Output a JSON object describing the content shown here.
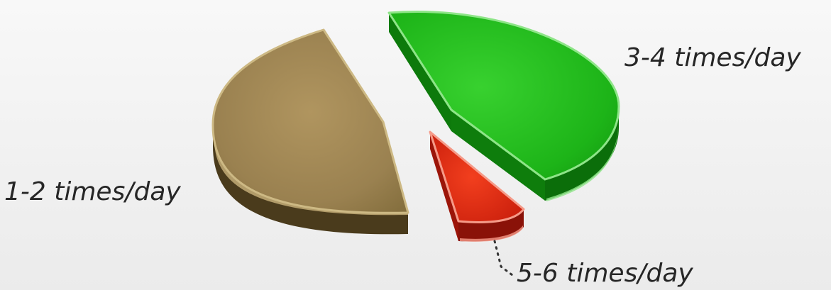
{
  "chart_data": {
    "type": "pie",
    "style": "3d-exploded",
    "slices": [
      {
        "label": "1-2 times/day",
        "value": 48,
        "color": "#a38a55"
      },
      {
        "label": "3-4 times/day",
        "value": 42,
        "color": "#1fbb1a"
      },
      {
        "label": "5-6 times/day",
        "value": 10,
        "color": "#e42d12"
      }
    ]
  }
}
